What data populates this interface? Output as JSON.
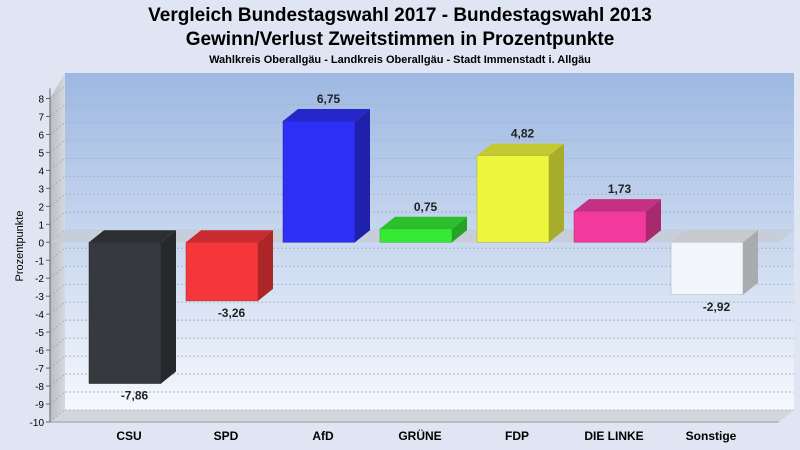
{
  "header": {
    "title_line1": "Vergleich Bundestagswahl 2017 - Bundestagswahl 2013",
    "title_line2": "Gewinn/Verlust Zweitstimmen in Prozentpunkte",
    "subtitle": "Wahlkreis Oberallgäu - Landkreis Oberallgäu - Stadt Immenstadt i. Allgäu"
  },
  "chart_data": {
    "type": "bar",
    "title": "Vergleich Bundestagswahl 2017 - Bundestagswahl 2013 / Gewinn/Verlust Zweitstimmen in Prozentpunkte",
    "subtitle": "Wahlkreis Oberallgäu - Landkreis Oberallgäu - Stadt Immenstadt i. Allgäu",
    "ylabel": "Prozentpunkte",
    "xlabel": "",
    "ylim": [
      -10,
      8
    ],
    "yticks": [
      8,
      7,
      6,
      5,
      4,
      3,
      2,
      1,
      0,
      -1,
      -2,
      -3,
      -4,
      -5,
      -6,
      -7,
      -8,
      -9,
      -10
    ],
    "categories": [
      "CSU",
      "SPD",
      "AfD",
      "GRÜNE",
      "FDP",
      "DIE LINKE",
      "Sonstige"
    ],
    "values": [
      -7.86,
      -3.26,
      6.75,
      0.75,
      4.82,
      1.73,
      -2.92
    ],
    "value_labels": [
      "-7,86",
      "-3,26",
      "6,75",
      "0,75",
      "4,82",
      "1,73",
      "-2,92"
    ],
    "colors": [
      "#36393d",
      "#f5363a",
      "#2d2ff5",
      "#35e935",
      "#eef53d",
      "#f23a9e",
      "#f2f5fa"
    ],
    "grid": true,
    "style": "3d"
  }
}
